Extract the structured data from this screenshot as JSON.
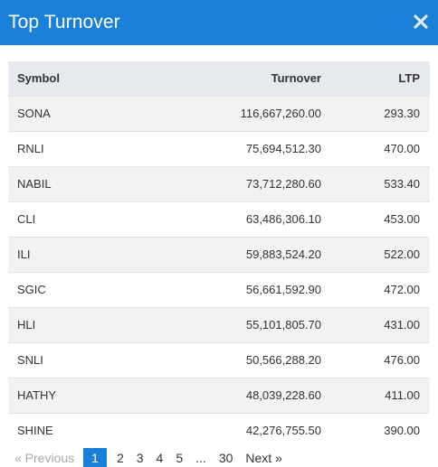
{
  "modal": {
    "title": "Top Turnover",
    "close_icon": "close-icon"
  },
  "table": {
    "headers": {
      "symbol": "Symbol",
      "turnover": "Turnover",
      "ltp": "LTP"
    },
    "rows": [
      {
        "symbol": "SONA",
        "turnover": "116,667,260.00",
        "ltp": "293.30"
      },
      {
        "symbol": "RNLI",
        "turnover": "75,694,512.30",
        "ltp": "470.00"
      },
      {
        "symbol": "NABIL",
        "turnover": "73,712,280.60",
        "ltp": "533.40"
      },
      {
        "symbol": "CLI",
        "turnover": "63,486,306.10",
        "ltp": "453.00"
      },
      {
        "symbol": "ILI",
        "turnover": "59,883,524.20",
        "ltp": "522.00"
      },
      {
        "symbol": "SGIC",
        "turnover": "56,661,592.90",
        "ltp": "472.00"
      },
      {
        "symbol": "HLI",
        "turnover": "55,101,805.70",
        "ltp": "431.00"
      },
      {
        "symbol": "SNLI",
        "turnover": "50,566,288.20",
        "ltp": "476.00"
      },
      {
        "symbol": "HATHY",
        "turnover": "48,039,228.60",
        "ltp": "411.00"
      },
      {
        "symbol": "SHINE",
        "turnover": "42,276,755.50",
        "ltp": "390.00"
      }
    ]
  },
  "pagination": {
    "previous": "« Previous",
    "pages": [
      "1",
      "2",
      "3",
      "4",
      "5"
    ],
    "ellipsis": "...",
    "last": "30",
    "next": "Next »",
    "active_page": "1"
  },
  "colors": {
    "accent": "#1a7fd6",
    "header_row": "#e6e9ed",
    "stripe": "#f2f2f2"
  }
}
